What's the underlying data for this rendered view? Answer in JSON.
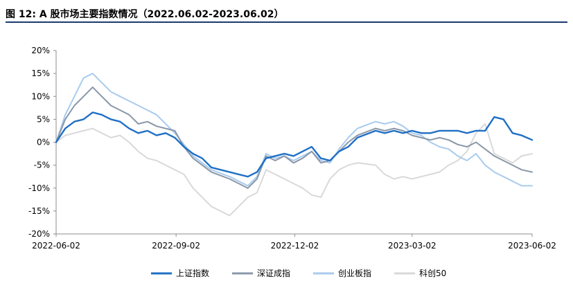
{
  "chart_data": {
    "type": "line",
    "title": "图 12:  A 股市场主要指数情况（2022.06.02-2023.06.02）",
    "xlabel": "",
    "ylabel": "",
    "ylim": [
      -20,
      20
    ],
    "yticks": [
      20,
      15,
      10,
      5,
      0,
      -5,
      -10,
      -15,
      -20
    ],
    "ytick_labels": [
      "20%",
      "15%",
      "10%",
      "5%",
      "0%",
      "-5%",
      "-10%",
      "-15%",
      "-20%"
    ],
    "xlim": [
      "2022-06-02",
      "2023-06-02"
    ],
    "xtick_labels": [
      "2022-06-02",
      "2022-09-02",
      "2022-12-02",
      "2023-03-02",
      "2023-06-02"
    ],
    "x": [
      "2022-06-02",
      "2022-06-09",
      "2022-06-16",
      "2022-06-23",
      "2022-06-30",
      "2022-07-07",
      "2022-07-14",
      "2022-07-21",
      "2022-07-28",
      "2022-08-04",
      "2022-08-11",
      "2022-08-18",
      "2022-08-25",
      "2022-09-01",
      "2022-09-08",
      "2022-09-15",
      "2022-09-22",
      "2022-09-29",
      "2022-10-13",
      "2022-10-20",
      "2022-10-27",
      "2022-11-03",
      "2022-11-10",
      "2022-11-17",
      "2022-11-24",
      "2022-12-01",
      "2022-12-08",
      "2022-12-15",
      "2022-12-22",
      "2022-12-29",
      "2023-01-05",
      "2023-01-12",
      "2023-01-19",
      "2023-02-02",
      "2023-02-09",
      "2023-02-16",
      "2023-02-23",
      "2023-03-02",
      "2023-03-09",
      "2023-03-16",
      "2023-03-23",
      "2023-03-30",
      "2023-04-06",
      "2023-04-13",
      "2023-04-20",
      "2023-04-27",
      "2023-05-04",
      "2023-05-11",
      "2023-05-18",
      "2023-05-25",
      "2023-06-02"
    ],
    "series": [
      {
        "name": "上证指数",
        "color": "#1f6fc5",
        "values": [
          0,
          3,
          4.5,
          5,
          6.5,
          6,
          5,
          4.5,
          3,
          2,
          2.5,
          1.5,
          2,
          1,
          -1,
          -2.5,
          -3.5,
          -5.5,
          -6.5,
          -7,
          -7.5,
          -6.5,
          -3.5,
          -3,
          -2.5,
          -3,
          -2,
          -1,
          -3.5,
          -4,
          -2,
          -1,
          1,
          2.5,
          2,
          2.5,
          2,
          2.5,
          2,
          2,
          2.5,
          2.5,
          2.5,
          2,
          2.5,
          2.5,
          5.5,
          5,
          2,
          1.5,
          0.5
        ]
      },
      {
        "name": "深证成指",
        "color": "#8a97a8",
        "values": [
          0,
          5,
          8,
          10,
          12,
          10,
          8,
          7,
          6,
          4,
          4.5,
          3.5,
          3,
          2.5,
          -1,
          -3.5,
          -5,
          -6.5,
          -8,
          -9,
          -10,
          -8,
          -3,
          -4,
          -3,
          -4.5,
          -3.5,
          -2,
          -4.5,
          -4,
          -2,
          0,
          1.5,
          3,
          2.5,
          3,
          2.5,
          1.5,
          1,
          0.5,
          1,
          0.5,
          -0.5,
          -1,
          0,
          -1.5,
          -3,
          -4,
          -5,
          -6,
          -6.5
        ]
      },
      {
        "name": "创业板指",
        "color": "#a8cbee",
        "values": [
          0,
          6,
          10,
          14,
          15,
          13,
          11,
          10,
          9,
          8,
          7,
          6,
          4,
          2,
          -0.5,
          -3,
          -4.5,
          -6,
          -7.5,
          -8.5,
          -9.5,
          -7.5,
          -2.5,
          -3.5,
          -3,
          -4,
          -3,
          -2,
          -4,
          -4.5,
          -1.5,
          1,
          3,
          4.5,
          4,
          4.5,
          3.5,
          2,
          1.5,
          0,
          -1,
          -1.5,
          -3,
          -4,
          -2.5,
          -5,
          -6.5,
          -7.5,
          -8.5,
          -9.5,
          -9.5
        ]
      },
      {
        "name": "科创50",
        "color": "#d9d9d9",
        "values": [
          0,
          1.5,
          2,
          2.5,
          3,
          2,
          1,
          1.5,
          0,
          -2,
          -3.5,
          -4,
          -5,
          -6,
          -7,
          -10,
          -12,
          -14,
          -16,
          -14,
          -12,
          -11,
          -6,
          -7,
          -8,
          -9,
          -10,
          -11.5,
          -12,
          -8,
          -6,
          -5,
          -4.5,
          -5,
          -7,
          -8,
          -7.5,
          -8,
          -7.5,
          -7,
          -6.5,
          -5,
          -4,
          -2,
          2,
          4,
          -2.5,
          -3.5,
          -4.5,
          -3,
          -2.5
        ]
      }
    ],
    "legend_position": "bottom-center",
    "grid": false
  }
}
